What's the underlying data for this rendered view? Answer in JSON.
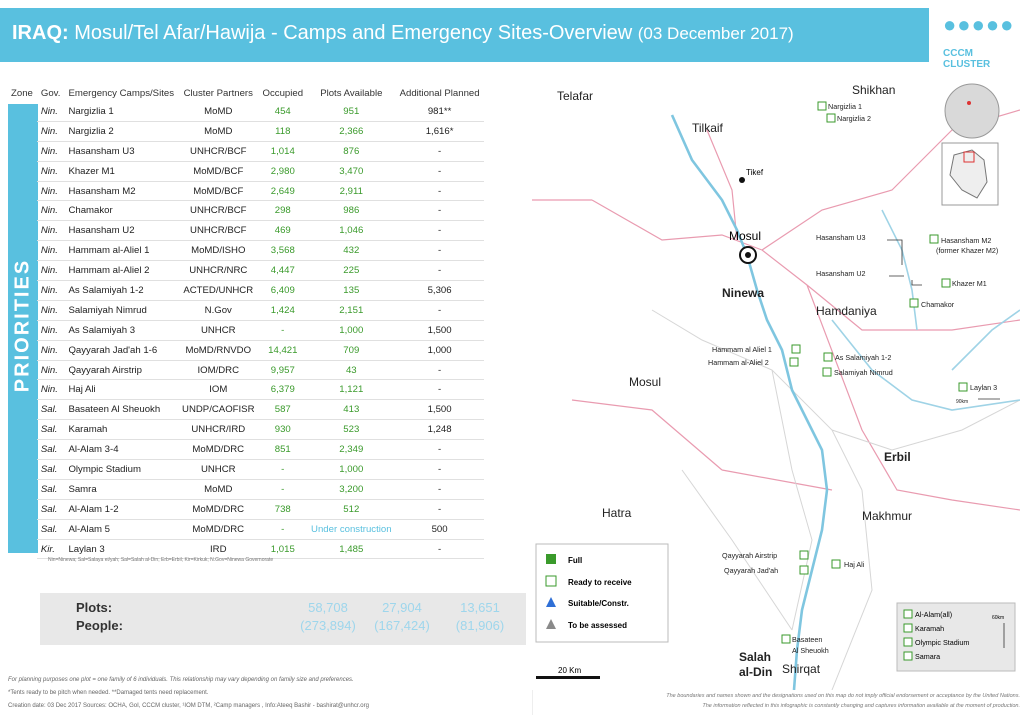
{
  "header": {
    "country": "IRAQ:",
    "title": "Mosul/Tel Afar/Hawija - Camps and Emergency Sites-Overview",
    "date": "(03 December 2017)",
    "logo_text": "CCCM CLUSTER"
  },
  "table": {
    "columns": [
      "Zone",
      "Gov.",
      "Emergency Camps/Sites",
      "Cluster Partners",
      "Occupied",
      "Plots Available",
      "Additional Planned"
    ],
    "zone_label": "PRIORITIES",
    "rows": [
      {
        "gov": "Nin.",
        "site": "Nargizlia 1",
        "partner": "MoMD",
        "occupied": "454",
        "available": "951",
        "planned": "981**"
      },
      {
        "gov": "Nin.",
        "site": "Nargizlia 2",
        "partner": "MoMD",
        "occupied": "118",
        "available": "2,366",
        "planned": "1,616*"
      },
      {
        "gov": "Nin.",
        "site": "Hasansham U3",
        "partner": "UNHCR/BCF",
        "occupied": "1,014",
        "available": "876",
        "planned": "-"
      },
      {
        "gov": "Nin.",
        "site": "Khazer M1",
        "partner": "MoMD/BCF",
        "occupied": "2,980",
        "available": "3,470",
        "planned": "-"
      },
      {
        "gov": "Nin.",
        "site": "Hasansham M2",
        "partner": "MoMD/BCF",
        "occupied": "2,649",
        "available": "2,911",
        "planned": "-"
      },
      {
        "gov": "Nin.",
        "site": "Chamakor",
        "partner": "UNHCR/BCF",
        "occupied": "298",
        "available": "986",
        "planned": "-"
      },
      {
        "gov": "Nin.",
        "site": "Hasansham U2",
        "partner": "UNHCR/BCF",
        "occupied": "469",
        "available": "1,046",
        "planned": "-"
      },
      {
        "gov": "Nin.",
        "site": "Hammam al-Aliel 1",
        "partner": "MoMD/ISHO",
        "occupied": "3,568",
        "available": "432",
        "planned": "-"
      },
      {
        "gov": "Nin.",
        "site": "Hammam al-Aliel 2",
        "partner": "UNHCR/NRC",
        "occupied": "4,447",
        "available": "225",
        "planned": "-"
      },
      {
        "gov": "Nin.",
        "site": "As Salamiyah 1-2",
        "partner": "ACTED/UNHCR",
        "occupied": "6,409",
        "available": "135",
        "planned": "5,306"
      },
      {
        "gov": "Nin.",
        "site": "Salamiyah Nimrud",
        "partner": "N.Gov",
        "occupied": "1,424",
        "available": "2,151",
        "planned": "-"
      },
      {
        "gov": "Nin.",
        "site": "As Salamiyah 3",
        "partner": "UNHCR",
        "occupied": "-",
        "available": "1,000",
        "planned": "1,500"
      },
      {
        "gov": "Nin.",
        "site": "Qayyarah Jad'ah 1-6",
        "partner": "MoMD/RNVDO",
        "occupied": "14,421",
        "available": "709",
        "planned": "1,000"
      },
      {
        "gov": "Nin.",
        "site": "Qayyarah Airstrip",
        "partner": "IOM/DRC",
        "occupied": "9,957",
        "available": "43",
        "planned": "-"
      },
      {
        "gov": "Nin.",
        "site": "Haj Ali",
        "partner": "IOM",
        "occupied": "6,379",
        "available": "1,121",
        "planned": "-"
      },
      {
        "gov": "Sal.",
        "site": "Basateen Al Sheuokh",
        "partner": "UNDP/CAOFISR",
        "occupied": "587",
        "available": "413",
        "planned": "1,500"
      },
      {
        "gov": "Sal.",
        "site": "Karamah",
        "partner": "UNHCR/IRD",
        "occupied": "930",
        "available": "523",
        "planned": "1,248"
      },
      {
        "gov": "Sal.",
        "site": "Al-Alam 3-4",
        "partner": "MoMD/DRC",
        "occupied": "851",
        "available": "2,349",
        "planned": "-"
      },
      {
        "gov": "Sal.",
        "site": "Olympic Stadium",
        "partner": "UNHCR",
        "occupied": "-",
        "available": "1,000",
        "planned": "-"
      },
      {
        "gov": "Sal.",
        "site": "Samra",
        "partner": "MoMD",
        "occupied": "-",
        "available": "3,200",
        "planned": "-"
      },
      {
        "gov": "Sal.",
        "site": "Al-Alam 1-2",
        "partner": "MoMD/DRC",
        "occupied": "738",
        "available": "512",
        "planned": "-"
      },
      {
        "gov": "Sal.",
        "site": "Al-Alam 5",
        "partner": "MoMD/DRC",
        "occupied": "-",
        "available": "Under construction",
        "planned": "500"
      },
      {
        "gov": "Kir.",
        "site": "Laylan 3",
        "partner": "IRD",
        "occupied": "1,015",
        "available": "1,485",
        "planned": "-"
      }
    ],
    "abbreviations": "Nin=Ninewa; Sal=Salaya ei/yah; Sal=Salah al-Din; Erb=Erbil; Kir=Kirkuk; N.Gov=Ninewa Governorate"
  },
  "totals": {
    "plots_label": "Plots:",
    "people_label": "People:",
    "plots": [
      "58,708",
      "27,904",
      "13,651"
    ],
    "people": [
      "(273,894)",
      "(167,424)",
      "(81,906)"
    ]
  },
  "footnotes": {
    "line1": "For planning purposes one plot = one family of 6 individuals. This relationship may vary depending on family size and preferences.",
    "line2": "*Tents ready to be pitch when needed. **Damaged tents need replacement.",
    "line3": "Creation date: 03 Dec 2017 Sources: OCHA, GoI, CCCM cluster, ¹IOM DTM, ²Camp managers , Info:Ateeq Bashir - bashirat@unhcr.org"
  },
  "map": {
    "regions": [
      "Telafar",
      "Tilkaif",
      "Shikhan",
      "Ninewa",
      "Hamdaniya",
      "Mosul",
      "Erbil",
      "Makhmur",
      "Hatra",
      "Salah al-Din",
      "Shirqat"
    ],
    "cities": [
      "Tikef",
      "Mosul"
    ],
    "sites": [
      "Nargizlia 1",
      "Nargizlia 2",
      "Hasansham U3",
      "Hasansham M2 (former Khazer M2)",
      "Hasansham U2",
      "Khazer M1",
      "Chamakor",
      "Hammam al Aliel 1",
      "Hammam al-Aliel 2",
      "As Salamiyah 1-2",
      "Salamiyah Nimrud",
      "Laylan 3",
      "Qayyarah Airstrip",
      "Qayyarah Jad'ah",
      "Haj Ali",
      "Basateen Al Sheuokh"
    ],
    "laylan_distance": "90km",
    "salah_box": [
      "Al-Alam(all)",
      "Karamah",
      "Olympic Stadium",
      "Samara"
    ],
    "salah_distance": "60km",
    "legend": [
      {
        "label": "Full",
        "color": "#3a9a2b",
        "icon": "tent-icon"
      },
      {
        "label": "Ready to receive",
        "color": "#3a9a2b",
        "icon": "tent-outline-icon"
      },
      {
        "label": "Suitable/Constr.",
        "color": "#2f6fd6",
        "icon": "triangle-icon"
      },
      {
        "label": "To be assessed",
        "color": "#8a8a8a",
        "icon": "triangle-icon"
      }
    ],
    "scale": "20 Km",
    "disclaimer1": "The boundaries and names shown and the designations used on this map do not imply official endorsement or acceptance by the United Nations.",
    "disclaimer2": "The information reflected in this infographic is constantly changing and captures information available at the moment of production."
  }
}
